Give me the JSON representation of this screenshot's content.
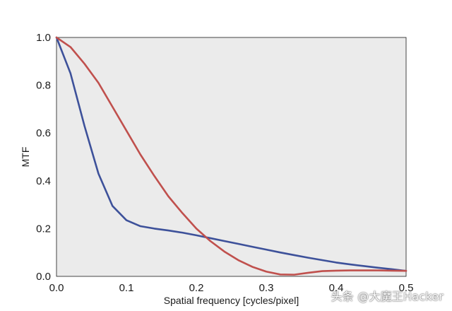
{
  "chart_data": {
    "type": "line",
    "title": "",
    "xlabel": "Spatial frequency [cycles/pixel]",
    "ylabel": "MTF",
    "xlim": [
      0,
      0.5
    ],
    "ylim": [
      0,
      1.0
    ],
    "x_ticks": [
      "0.0",
      "0.1",
      "0.2",
      "0.3",
      "0.4",
      "0.5"
    ],
    "y_ticks": [
      "0.0",
      "0.2",
      "0.4",
      "0.6",
      "0.8",
      "1.0"
    ],
    "grid": false,
    "background": "#ebebeb",
    "series": [
      {
        "color": "#3d519a",
        "x": [
          0.0,
          0.02,
          0.04,
          0.06,
          0.08,
          0.1,
          0.12,
          0.14,
          0.16,
          0.18,
          0.2,
          0.22,
          0.24,
          0.26,
          0.28,
          0.3,
          0.32,
          0.34,
          0.36,
          0.38,
          0.4,
          0.42,
          0.44,
          0.46,
          0.48,
          0.5
        ],
        "y": [
          1.0,
          0.85,
          0.63,
          0.43,
          0.295,
          0.235,
          0.21,
          0.2,
          0.192,
          0.183,
          0.172,
          0.16,
          0.148,
          0.136,
          0.124,
          0.112,
          0.1,
          0.089,
          0.078,
          0.068,
          0.058,
          0.05,
          0.043,
          0.036,
          0.03,
          0.023
        ]
      },
      {
        "color": "#c0504d",
        "x": [
          0.0,
          0.02,
          0.04,
          0.06,
          0.08,
          0.1,
          0.12,
          0.14,
          0.16,
          0.18,
          0.2,
          0.22,
          0.24,
          0.26,
          0.28,
          0.3,
          0.32,
          0.34,
          0.36,
          0.38,
          0.4,
          0.42,
          0.44,
          0.46,
          0.48,
          0.5
        ],
        "y": [
          1.0,
          0.96,
          0.89,
          0.81,
          0.71,
          0.61,
          0.51,
          0.42,
          0.335,
          0.265,
          0.2,
          0.148,
          0.104,
          0.068,
          0.04,
          0.02,
          0.008,
          0.007,
          0.015,
          0.022,
          0.024,
          0.025,
          0.025,
          0.025,
          0.024,
          0.023
        ]
      }
    ]
  },
  "watermark": {
    "text": "头条 @大魔王Hacker"
  }
}
